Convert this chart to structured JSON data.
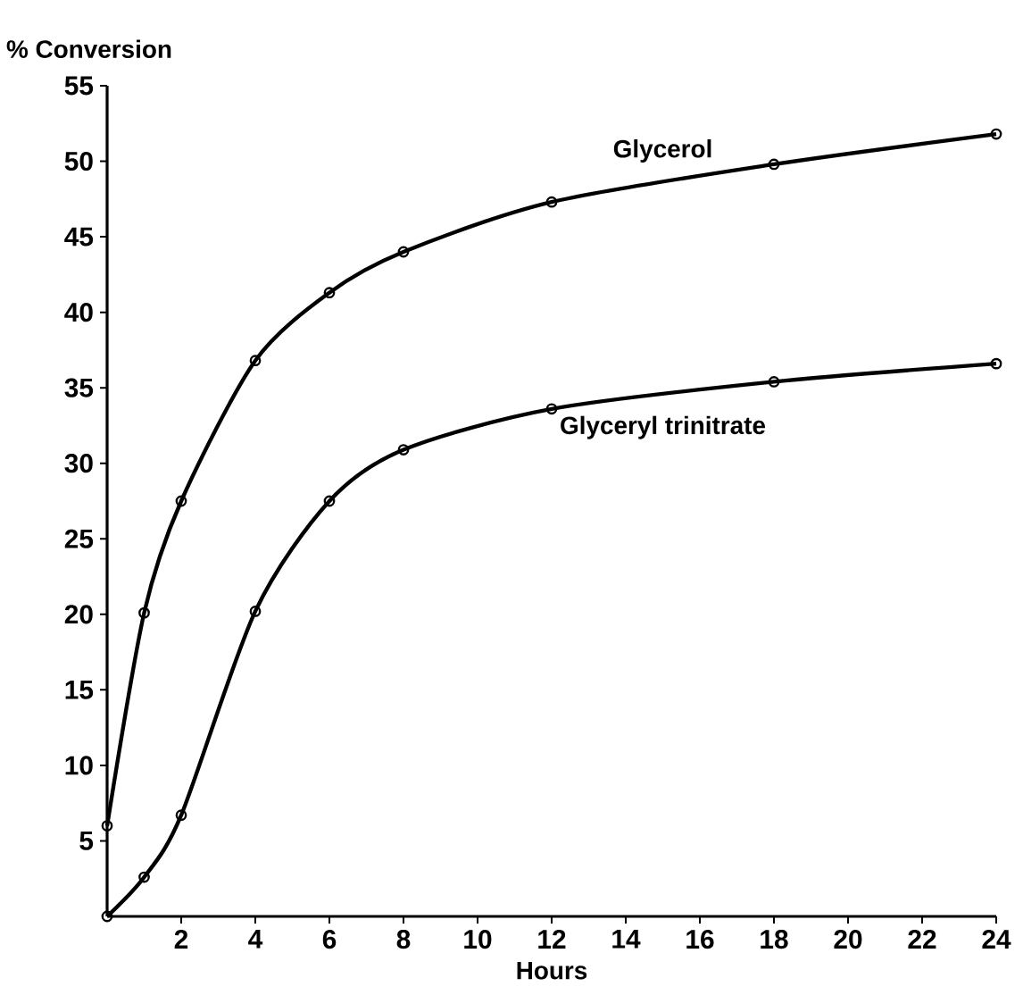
{
  "chart_data": {
    "type": "line",
    "xlabel": "Hours",
    "ylabel": "% Conversion",
    "xlim": [
      0,
      24
    ],
    "ylim": [
      0,
      55
    ],
    "xticks": [
      2,
      4,
      6,
      8,
      10,
      12,
      14,
      16,
      18,
      20,
      22,
      24
    ],
    "yticks": [
      5,
      10,
      15,
      20,
      25,
      30,
      35,
      40,
      45,
      50,
      55
    ],
    "x": [
      0,
      1,
      2,
      4,
      6,
      8,
      12,
      18,
      24
    ],
    "series": [
      {
        "name": "Glycerol",
        "color": "#000000",
        "values": [
          6,
          20.1,
          27.5,
          36.8,
          41.3,
          44,
          47.3,
          49.8,
          51.8
        ]
      },
      {
        "name": "Glyceryl trinitrate",
        "color": "#000000",
        "values": [
          0,
          2.6,
          6.7,
          20.2,
          27.5,
          30.9,
          33.6,
          35.4,
          36.6
        ]
      }
    ],
    "marker": "circle",
    "line_style": "solid",
    "grid": false,
    "legend": false
  }
}
